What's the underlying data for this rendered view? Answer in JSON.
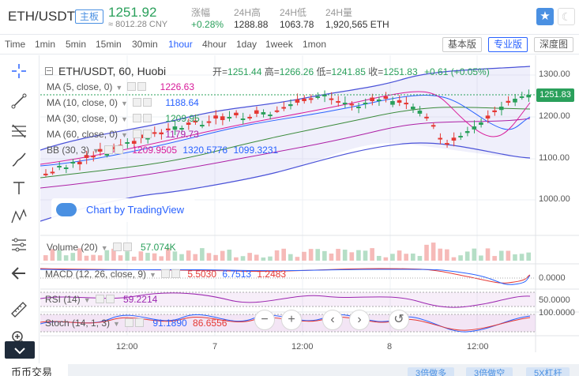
{
  "header": {
    "pair": "ETH/USDT",
    "badge": "主板",
    "price": "1251.92",
    "price_cny": "≈ 8012.28 CNY",
    "stats": [
      {
        "label": "涨幅",
        "value": "+0.28%"
      },
      {
        "label": "24H高",
        "value": "1288.88"
      },
      {
        "label": "24H低",
        "value": "1063.78"
      },
      {
        "label": "24H量",
        "value": "1,920,565 ETH"
      }
    ],
    "favorite_icon": "star-icon",
    "theme_icon": "moon-icon"
  },
  "toolbar": {
    "timeframes": [
      "Time",
      "1min",
      "5min",
      "15min",
      "30min",
      "1hour",
      "4hour",
      "1day",
      "1week",
      "1mon"
    ],
    "active_timeframe": "1hour",
    "views": [
      "基本版",
      "专业版",
      "深度图"
    ],
    "active_view": "专业版"
  },
  "tools": [
    "crosshair-icon",
    "trend-line-icon",
    "fib-icon",
    "brush-icon",
    "text-icon",
    "pattern-icon",
    "prediction-icon",
    "back-arrow-icon",
    "ruler-icon",
    "zoom-in-icon",
    "collapse-icon"
  ],
  "chart": {
    "title": "ETH/USDT, 60, Huobi",
    "ohlc": {
      "open_label": "开=",
      "open": "1251.44",
      "high_label": "高=",
      "high": "1266.26",
      "low_label": "低=",
      "low": "1241.85",
      "close_label": "收=",
      "close": "1251.83",
      "change": "+0.61 (+0.05%)"
    },
    "indicators": [
      {
        "name": "MA (5, close, 0)",
        "value": "1226.63",
        "color": "#d81b9a"
      },
      {
        "name": "MA (10, close, 0)",
        "value": "1188.64",
        "color": "#2962ff"
      },
      {
        "name": "MA (30, close, 0)",
        "value": "1209.95",
        "color": "#2aa05b"
      },
      {
        "name": "MA (60, close, 0)",
        "value": "1179.73",
        "color": "#ad1fa5"
      },
      {
        "name": "BB (30, 3)",
        "value": "1209.9505",
        "value2": "1320.5776",
        "value3": "1099.3231",
        "color": "#2962ff"
      }
    ],
    "price_axis": [
      "1300.00",
      "1200.00",
      "1100.00",
      "1000.00"
    ],
    "current_price_tag": "1251.83",
    "x_axis": [
      "12:00",
      "7",
      "12:00",
      "8",
      "12:00"
    ],
    "watermark": "Chart by TradingView",
    "volume": {
      "name": "Volume (20)",
      "value": "57.074K"
    },
    "macd": {
      "name": "MACD (12, 26, close, 9)",
      "v1": "5.5030",
      "v2": "6.7513",
      "v3": "1.2483",
      "axis": "0.0000"
    },
    "rsi": {
      "name": "RSI (14)",
      "value": "59.2214",
      "axis": "50.0000"
    },
    "stoch": {
      "name": "Stoch (14, 1, 3)",
      "v1": "91.1890",
      "v2": "86.6556",
      "axis": "100.0000"
    },
    "nav_controls": [
      "minus-icon",
      "plus-icon",
      "chevron-left-icon",
      "chevron-right-icon",
      "reset-icon"
    ]
  },
  "bottom": {
    "tab": "币币交易",
    "buttons": [
      "3倍做多",
      "3倍做空",
      "5X杠杆"
    ]
  }
}
